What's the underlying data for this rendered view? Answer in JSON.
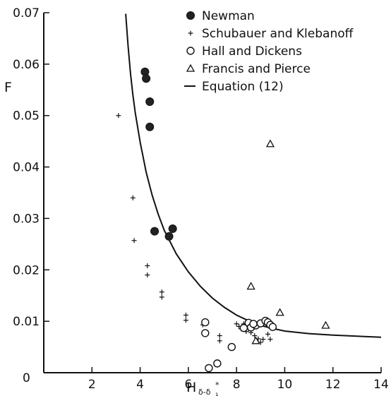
{
  "chart_data": {
    "type": "scatter",
    "xlabel": "H",
    "xlabel_subscript": "δ-δ",
    "xlabel_subscript_suffix": "₁",
    "xlabel_subscript_star": "*",
    "ylabel": "F",
    "xlim": [
      0,
      14
    ],
    "ylim": [
      0,
      0.07
    ],
    "x_ticks": [
      2,
      4,
      6,
      8,
      10,
      12,
      14
    ],
    "y_ticks": [
      0,
      0.01,
      0.02,
      0.03,
      0.04,
      0.05,
      0.06,
      0.07
    ],
    "x_tick_labels": [
      "2",
      "4",
      "6",
      "8",
      "10",
      "12",
      "14"
    ],
    "y_tick_labels": [
      "0",
      "0.01",
      "0.02",
      "0.03",
      "0.04",
      "0.05",
      "0.06",
      "0.07"
    ],
    "origin_label": "0",
    "grid": false,
    "legend_position": "top-right",
    "series": [
      {
        "name": "Newman",
        "marker": "filled-circle",
        "points": [
          [
            4.2,
            0.0585
          ],
          [
            4.25,
            0.0572
          ],
          [
            4.4,
            0.0527
          ],
          [
            4.4,
            0.0478
          ],
          [
            4.6,
            0.0275
          ],
          [
            5.2,
            0.0265
          ],
          [
            5.35,
            0.028
          ]
        ]
      },
      {
        "name": "Schubauer and Klebanoff",
        "marker": "plus",
        "points": [
          [
            3.1,
            0.05
          ],
          [
            3.7,
            0.034
          ],
          [
            3.75,
            0.0257
          ],
          [
            4.3,
            0.0208
          ],
          [
            4.3,
            0.019
          ],
          [
            4.9,
            0.0157
          ],
          [
            4.9,
            0.0147
          ],
          [
            5.9,
            0.0112
          ],
          [
            5.9,
            0.0102
          ],
          [
            6.6,
            0.0093
          ],
          [
            7.3,
            0.0072
          ],
          [
            7.3,
            0.0062
          ],
          [
            8.0,
            0.0095
          ],
          [
            8.1,
            0.009
          ],
          [
            8.3,
            0.0095
          ],
          [
            8.5,
            0.0085
          ],
          [
            8.6,
            0.0078
          ],
          [
            8.75,
            0.0072
          ],
          [
            8.9,
            0.0066
          ],
          [
            9.0,
            0.0059
          ],
          [
            9.1,
            0.0065
          ],
          [
            9.3,
            0.0075
          ],
          [
            9.4,
            0.0065
          ],
          [
            8.2,
            0.0085
          ],
          [
            8.4,
            0.008
          ]
        ]
      },
      {
        "name": "Hall and Dickens",
        "marker": "open-circle",
        "points": [
          [
            6.7,
            0.0098
          ],
          [
            6.7,
            0.0077
          ],
          [
            6.85,
            0.0009
          ],
          [
            7.2,
            0.0018
          ],
          [
            7.8,
            0.005
          ],
          [
            8.3,
            0.0087
          ],
          [
            8.5,
            0.0097
          ],
          [
            8.6,
            0.0088
          ],
          [
            8.8,
            0.0092
          ],
          [
            9.0,
            0.0096
          ],
          [
            9.2,
            0.0101
          ],
          [
            9.3,
            0.0098
          ],
          [
            9.4,
            0.0093
          ],
          [
            9.5,
            0.0089
          ],
          [
            8.7,
            0.0095
          ]
        ]
      },
      {
        "name": "Francis and Pierce",
        "marker": "open-triangle",
        "points": [
          [
            9.4,
            0.0445
          ],
          [
            8.6,
            0.0168
          ],
          [
            8.8,
            0.0062
          ],
          [
            9.8,
            0.0117
          ],
          [
            11.7,
            0.0092
          ]
        ]
      },
      {
        "name": "Equation (12)",
        "marker": "line",
        "points": [
          [
            3.4,
            0.0698
          ],
          [
            3.5,
            0.0635
          ],
          [
            3.6,
            0.0582
          ],
          [
            3.7,
            0.054
          ],
          [
            3.8,
            0.0505
          ],
          [
            4.0,
            0.0448
          ],
          [
            4.25,
            0.039
          ],
          [
            4.5,
            0.0345
          ],
          [
            4.75,
            0.0308
          ],
          [
            5.0,
            0.0277
          ],
          [
            5.5,
            0.0231
          ],
          [
            6.0,
            0.0196
          ],
          [
            6.5,
            0.0168
          ],
          [
            7.0,
            0.0145
          ],
          [
            7.5,
            0.0127
          ],
          [
            8.0,
            0.0112
          ],
          [
            8.5,
            0.0101
          ],
          [
            9.0,
            0.0092
          ],
          [
            9.5,
            0.0086
          ],
          [
            10.0,
            0.0081
          ],
          [
            11.0,
            0.0076
          ],
          [
            12.0,
            0.0073
          ],
          [
            13.0,
            0.0071
          ],
          [
            14.0,
            0.0069
          ]
        ]
      }
    ]
  }
}
